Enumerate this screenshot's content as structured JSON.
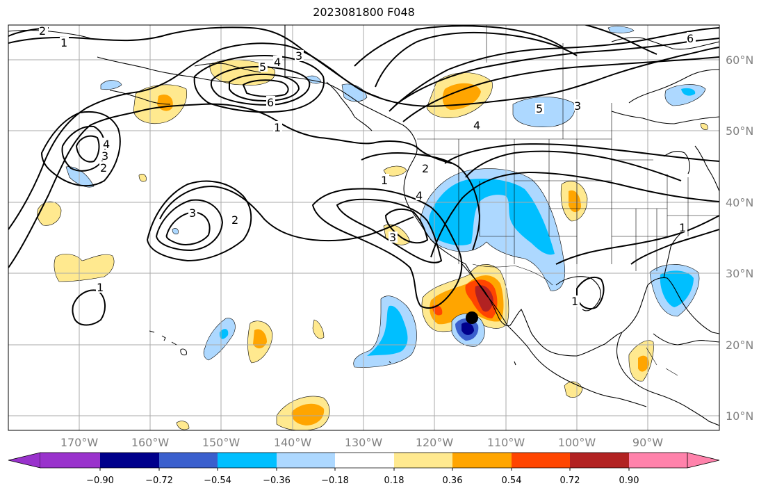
{
  "map": {
    "title": "2023081800 F048",
    "lat_labels": [
      "60°N",
      "50°N",
      "40°N",
      "30°N",
      "20°N",
      "10°N"
    ],
    "lon_labels": [
      "170°W",
      "160°W",
      "150°W",
      "140°W",
      "130°W",
      "120°W",
      "110°W",
      "100°W",
      "90°W"
    ],
    "contour_labels": [
      "2",
      "1",
      "6",
      "5",
      "4",
      "3",
      "1",
      "6",
      "5",
      "4",
      "3",
      "1",
      "2",
      "3",
      "4",
      "2",
      "2",
      "3",
      "1",
      "4",
      "3",
      "1",
      "1"
    ],
    "marker": "storm-center-dot"
  },
  "colorbar": {
    "ticks": [
      "−0.90",
      "−0.72",
      "−0.54",
      "−0.36",
      "−0.18",
      "0.18",
      "0.36",
      "0.54",
      "0.72",
      "0.90"
    ],
    "colors": [
      "#9932cc",
      "#00008b",
      "#3a5fcd",
      "#00bfff",
      "#add8ff",
      "#ffffff",
      "#ffe98f",
      "#ffa500",
      "#ff4500",
      "#b22222",
      "#ff82ab"
    ]
  },
  "colors": {
    "grid": "#aaaaaa",
    "coast": "#000000",
    "label_gray": "#808080"
  }
}
